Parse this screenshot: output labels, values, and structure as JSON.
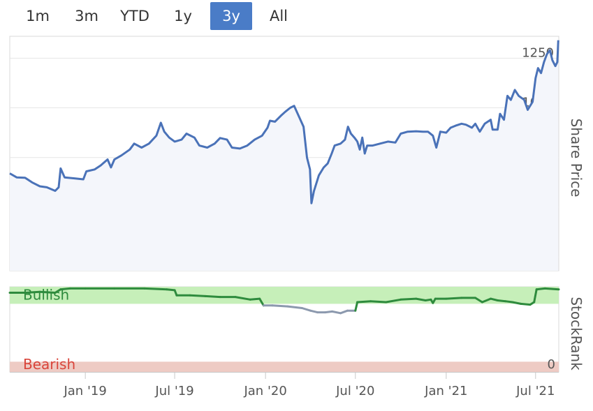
{
  "range_selector": {
    "buttons": [
      {
        "label": "1m",
        "active": false
      },
      {
        "label": "3m",
        "active": false
      },
      {
        "label": "YTD",
        "active": false
      },
      {
        "label": "1y",
        "active": false
      },
      {
        "label": "3y",
        "active": true
      },
      {
        "label": "All",
        "active": false
      }
    ]
  },
  "colors": {
    "price_line": "#4a72b8",
    "price_fill": "#f4f6fb",
    "bullish_line": "#2e8b3d",
    "neutral_line": "#8c99ae",
    "bullish_band": "#c6efb9",
    "bearish_band": "#eecbc4",
    "bullish_text": "#2e8b3d",
    "bearish_text": "#d9443a",
    "active_button": "#4a7cc7"
  },
  "chart_data": [
    {
      "type": "area",
      "ylabel": "Share Price",
      "ylim": [
        180,
        1360
      ],
      "yticks": [
        250,
        500,
        750,
        1000,
        1250
      ],
      "xlim": [
        "2018-08-01",
        "2021-08-17"
      ],
      "grid": true,
      "series": [
        {
          "points": [
            [
              "2018-08-01",
              670
            ],
            [
              "2018-08-15",
              650
            ],
            [
              "2018-09-01",
              648
            ],
            [
              "2018-09-15",
              625
            ],
            [
              "2018-10-01",
              605
            ],
            [
              "2018-10-15",
              600
            ],
            [
              "2018-11-01",
              582
            ],
            [
              "2018-11-08",
              600
            ],
            [
              "2018-11-12",
              695
            ],
            [
              "2018-11-20",
              650
            ],
            [
              "2018-12-10",
              645
            ],
            [
              "2018-12-28",
              640
            ],
            [
              "2019-01-03",
              680
            ],
            [
              "2019-01-20",
              690
            ],
            [
              "2019-02-01",
              710
            ],
            [
              "2019-02-15",
              740
            ],
            [
              "2019-02-22",
              700
            ],
            [
              "2019-03-01",
              740
            ],
            [
              "2019-03-15",
              760
            ],
            [
              "2019-04-01",
              790
            ],
            [
              "2019-04-10",
              820
            ],
            [
              "2019-04-25",
              800
            ],
            [
              "2019-05-10",
              820
            ],
            [
              "2019-05-25",
              860
            ],
            [
              "2019-06-03",
              925
            ],
            [
              "2019-06-10",
              880
            ],
            [
              "2019-06-20",
              850
            ],
            [
              "2019-07-01",
              830
            ],
            [
              "2019-07-15",
              840
            ],
            [
              "2019-07-25",
              870
            ],
            [
              "2019-08-10",
              850
            ],
            [
              "2019-08-20",
              810
            ],
            [
              "2019-09-05",
              800
            ],
            [
              "2019-09-20",
              820
            ],
            [
              "2019-10-01",
              848
            ],
            [
              "2019-10-15",
              840
            ],
            [
              "2019-10-25",
              800
            ],
            [
              "2019-11-10",
              795
            ],
            [
              "2019-11-25",
              810
            ],
            [
              "2019-12-10",
              840
            ],
            [
              "2019-12-25",
              860
            ],
            [
              "2020-01-05",
              900
            ],
            [
              "2020-01-10",
              935
            ],
            [
              "2020-01-20",
              930
            ],
            [
              "2020-02-01",
              960
            ],
            [
              "2020-02-10",
              980
            ],
            [
              "2020-02-20",
              1000
            ],
            [
              "2020-02-28",
              1010
            ],
            [
              "2020-03-08",
              960
            ],
            [
              "2020-03-18",
              905
            ],
            [
              "2020-03-25",
              750
            ],
            [
              "2020-03-31",
              690
            ],
            [
              "2020-04-03",
              520
            ],
            [
              "2020-04-08",
              580
            ],
            [
              "2020-04-18",
              660
            ],
            [
              "2020-04-28",
              700
            ],
            [
              "2020-05-06",
              720
            ],
            [
              "2020-05-14",
              770
            ],
            [
              "2020-05-20",
              810
            ],
            [
              "2020-06-01",
              820
            ],
            [
              "2020-06-10",
              840
            ],
            [
              "2020-06-16",
              905
            ],
            [
              "2020-06-22",
              870
            ],
            [
              "2020-06-29",
              850
            ],
            [
              "2020-07-05",
              830
            ],
            [
              "2020-07-10",
              790
            ],
            [
              "2020-07-15",
              850
            ],
            [
              "2020-07-20",
              770
            ],
            [
              "2020-07-25",
              810
            ],
            [
              "2020-08-05",
              810
            ],
            [
              "2020-08-20",
              820
            ],
            [
              "2020-09-05",
              830
            ],
            [
              "2020-09-20",
              825
            ],
            [
              "2020-10-01",
              870
            ],
            [
              "2020-10-15",
              880
            ],
            [
              "2020-11-01",
              882
            ],
            [
              "2020-11-15",
              880
            ],
            [
              "2020-11-25",
              880
            ],
            [
              "2020-12-05",
              860
            ],
            [
              "2020-12-12",
              800
            ],
            [
              "2020-12-20",
              880
            ],
            [
              "2021-01-01",
              875
            ],
            [
              "2021-01-10",
              900
            ],
            [
              "2021-01-20",
              910
            ],
            [
              "2021-02-01",
              920
            ],
            [
              "2021-02-10",
              915
            ],
            [
              "2021-02-22",
              900
            ],
            [
              "2021-03-01",
              920
            ],
            [
              "2021-03-10",
              880
            ],
            [
              "2021-03-20",
              920
            ],
            [
              "2021-04-01",
              940
            ],
            [
              "2021-04-05",
              890
            ],
            [
              "2021-04-15",
              890
            ],
            [
              "2021-04-20",
              970
            ],
            [
              "2021-04-28",
              940
            ],
            [
              "2021-05-05",
              1060
            ],
            [
              "2021-05-12",
              1040
            ],
            [
              "2021-05-20",
              1090
            ],
            [
              "2021-05-28",
              1060
            ],
            [
              "2021-06-08",
              1040
            ],
            [
              "2021-06-15",
              990
            ],
            [
              "2021-06-25",
              1030
            ],
            [
              "2021-07-01",
              1150
            ],
            [
              "2021-07-06",
              1200
            ],
            [
              "2021-07-12",
              1175
            ],
            [
              "2021-07-18",
              1230
            ],
            [
              "2021-07-24",
              1270
            ],
            [
              "2021-07-30",
              1290
            ],
            [
              "2021-08-04",
              1240
            ],
            [
              "2021-08-10",
              1210
            ],
            [
              "2021-08-14",
              1230
            ],
            [
              "2021-08-16",
              1340
            ]
          ]
        }
      ],
      "x_tick_labels": [
        "Jan '19",
        "Jul '19",
        "Jan '20",
        "Jul '20",
        "Jan '21",
        "Jul '21"
      ],
      "x_tick_dates": [
        "2019-01-01",
        "2019-07-01",
        "2020-01-01",
        "2020-07-01",
        "2021-01-01",
        "2021-07-01"
      ]
    },
    {
      "type": "line",
      "ylabel": "StockRank",
      "ylim": [
        0,
        100
      ],
      "bands": [
        {
          "label": "Bullish",
          "from": 80,
          "to": 100
        },
        {
          "label": "Bearish",
          "from": 0,
          "to": 12
        }
      ],
      "yticks": [
        0
      ],
      "series": [
        {
          "points": [
            [
              "2018-08-01",
              93
            ],
            [
              "2018-09-01",
              93
            ],
            [
              "2018-10-01",
              94
            ],
            [
              "2018-11-01",
              93
            ],
            [
              "2018-11-12",
              97
            ],
            [
              "2018-12-01",
              98
            ],
            [
              "2019-01-01",
              98
            ],
            [
              "2019-03-01",
              98
            ],
            [
              "2019-05-01",
              98
            ],
            [
              "2019-06-15",
              97
            ],
            [
              "2019-07-01",
              96
            ],
            [
              "2019-07-05",
              90
            ],
            [
              "2019-08-01",
              90
            ],
            [
              "2019-09-01",
              89
            ],
            [
              "2019-10-01",
              88
            ],
            [
              "2019-11-01",
              88
            ],
            [
              "2019-12-01",
              85
            ],
            [
              "2019-12-20",
              86
            ],
            [
              "2019-12-28",
              78
            ],
            [
              "2020-01-15",
              78
            ],
            [
              "2020-02-15",
              77
            ],
            [
              "2020-03-15",
              75
            ],
            [
              "2020-04-01",
              72
            ],
            [
              "2020-04-15",
              70
            ],
            [
              "2020-05-01",
              70
            ],
            [
              "2020-05-15",
              71
            ],
            [
              "2020-06-01",
              69
            ],
            [
              "2020-06-15",
              72
            ],
            [
              "2020-07-01",
              72
            ],
            [
              "2020-07-05",
              82
            ],
            [
              "2020-08-01",
              83
            ],
            [
              "2020-09-01",
              82
            ],
            [
              "2020-10-01",
              85
            ],
            [
              "2020-11-01",
              86
            ],
            [
              "2020-11-20",
              84
            ],
            [
              "2020-12-01",
              85
            ],
            [
              "2020-12-05",
              81
            ],
            [
              "2020-12-10",
              86
            ],
            [
              "2021-01-01",
              86
            ],
            [
              "2021-02-01",
              87
            ],
            [
              "2021-03-01",
              87
            ],
            [
              "2021-03-15",
              82
            ],
            [
              "2021-04-01",
              86
            ],
            [
              "2021-04-15",
              84
            ],
            [
              "2021-05-01",
              83
            ],
            [
              "2021-05-15",
              82
            ],
            [
              "2021-06-01",
              80
            ],
            [
              "2021-06-20",
              79
            ],
            [
              "2021-06-28",
              82
            ],
            [
              "2021-07-03",
              97
            ],
            [
              "2021-07-20",
              98
            ],
            [
              "2021-08-17",
              97
            ]
          ],
          "neutral_below": 80
        }
      ]
    }
  ]
}
